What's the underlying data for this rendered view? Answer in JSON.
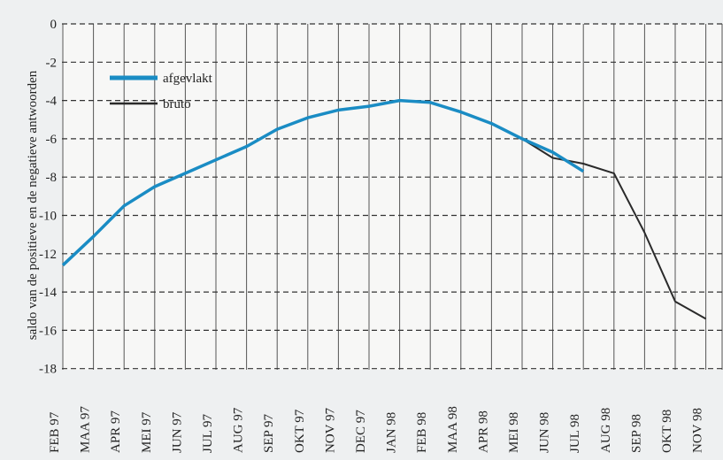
{
  "chart_data": {
    "type": "line",
    "title": "",
    "xlabel": "",
    "ylabel": "saldo van de positieve en de negatieve antwoorden",
    "categories": [
      "FEB 97",
      "MAA 97",
      "APR 97",
      "MEI 97",
      "JUN 97",
      "JUL 97",
      "AUG 97",
      "SEP 97",
      "OKT 97",
      "NOV 97",
      "DEC 97",
      "JAN 98",
      "FEB 98",
      "MAA 98",
      "APR 98",
      "MEI 98",
      "JUN 98",
      "JUL 98",
      "AUG 98",
      "SEP 98",
      "OKT 98",
      "NOV 98"
    ],
    "yticks": [
      "0",
      "-2",
      "-4",
      "-6",
      "-8",
      "-10",
      "-12",
      "-14",
      "-16",
      "-18"
    ],
    "ylim": [
      -19,
      0
    ],
    "grid": true,
    "legend_position": "top-left",
    "series": [
      {
        "name": "afgevlakt",
        "color": "#1a8cc4",
        "values": [
          -12.6,
          -11.1,
          -9.5,
          -8.5,
          -7.8,
          -7.1,
          -6.4,
          -5.5,
          -4.9,
          -4.5,
          -4.3,
          -4.0,
          -4.1,
          -4.6,
          -5.2,
          -6.0,
          -6.7,
          -7.7,
          null,
          null,
          null,
          null
        ]
      },
      {
        "name": "bruto",
        "color": "#2a2a2a",
        "values": [
          null,
          null,
          null,
          null,
          null,
          null,
          null,
          null,
          null,
          null,
          null,
          null,
          null,
          null,
          null,
          -6.0,
          -7.0,
          -7.3,
          -7.8,
          -10.9,
          -14.5,
          -15.4
        ]
      }
    ]
  }
}
